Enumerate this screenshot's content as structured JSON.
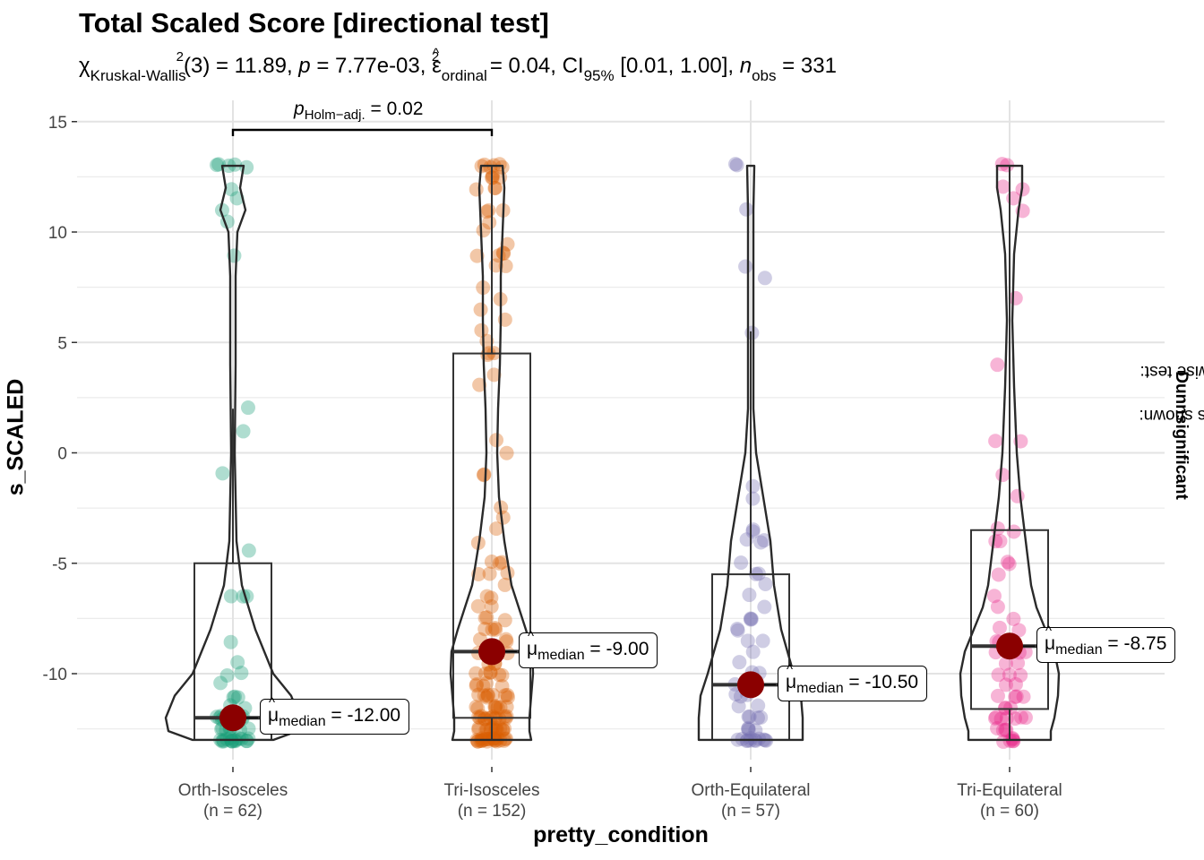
{
  "header": {
    "title": "Total Scaled Score [directional test]",
    "subtitle": {
      "chi": "χ",
      "chi_sub": "Kruskal-Wallis",
      "chi_sup": "2",
      "df_stat": "(3) = 11.89, ",
      "p_sym": "p",
      "p_val": " = 7.77e-03, ",
      "eps": "ε",
      "eps_sub": "ordinal",
      "eps_sup": "2",
      "eps_val": " = 0.04, CI",
      "ci_sub": "95%",
      "ci_val": " [0.01, 1.00], ",
      "n_sym": "n",
      "n_sub": "obs",
      "n_val": " = 331"
    }
  },
  "axis": {
    "ylabel": "s_SCALED",
    "xlabel": "pretty_condition"
  },
  "caption": {
    "prefix": "Pairwise test: ",
    "test": "Dunn",
    "middle": ", Bars shown: ",
    "shown": "significant"
  },
  "pairwise": {
    "p_sym": "p",
    "p_sub": "Holm−adj.",
    "p_val": " = 0.02"
  },
  "colors": {
    "Orth-Isosceles": "#1B9E77",
    "Tri-Isosceles": "#D95F02",
    "Orth-Equilateral": "#7570B3",
    "Tri-Equilateral": "#E7298A",
    "median_point": "#8B0000"
  },
  "chart_data": {
    "type": "violin-box-scatter",
    "ylim": [
      -13.6,
      15.3
    ],
    "yticks": [
      15,
      10,
      5,
      0,
      -5,
      -10
    ],
    "ytick_labels": [
      "15",
      "10",
      "5",
      "0",
      "-5",
      "-10"
    ],
    "grid": true,
    "categories": [
      "Orth-Isosceles",
      "Tri-Isosceles",
      "Orth-Equilateral",
      "Tri-Equilateral"
    ],
    "category_counts": [
      "(n = 62)",
      "(n = 152)",
      "(n = 57)",
      "(n = 60)"
    ],
    "groups": [
      {
        "name": "Orth-Isosceles",
        "box": {
          "q1": -13,
          "median": -12,
          "q3": -5,
          "whisker_low": -13,
          "whisker_high": 2
        },
        "violin_max": 13,
        "median_label_mu": "μ",
        "median_label_sub": "median",
        "median_label_val": " = -12.00",
        "points": [
          13,
          13,
          13,
          13,
          13,
          12,
          11.5,
          11,
          10.5,
          9,
          2,
          1,
          -1,
          -4.5,
          -6.5,
          -6.5,
          -6.5,
          -8.5,
          -9.5,
          -10,
          -10,
          -11,
          -11,
          -11.5,
          -12,
          -12,
          -12,
          -12,
          -12,
          -12.5,
          -12.5,
          -12.5,
          -12.5,
          -13,
          -13,
          -13,
          -13,
          -13,
          -13,
          -13,
          -13,
          -13,
          -13,
          -13,
          -13,
          -12,
          -12,
          -11,
          -12.5,
          -13,
          -12,
          -10.5,
          -12,
          -13,
          -12.5,
          -11.5,
          -13,
          -12,
          -13,
          -12.5,
          -13,
          -12
        ]
      },
      {
        "name": "Tri-Isosceles",
        "box": {
          "q1": -12,
          "median": -9,
          "q3": 4.5,
          "whisker_low": -13,
          "whisker_high": 13
        },
        "violin_max": 13,
        "median_label_mu": "μ",
        "median_label_sub": "median",
        "median_label_val": " = -9.00",
        "points": [
          13,
          13,
          13,
          13,
          13,
          13,
          12.5,
          12.5,
          12.5,
          12.5,
          12,
          12,
          12,
          11,
          11,
          11,
          10.5,
          10,
          9.5,
          9,
          9,
          9,
          9,
          8.5,
          8.5,
          7.5,
          7,
          6.5,
          6,
          5.5,
          5,
          4.5,
          4.5,
          4.5,
          3.5,
          3,
          0.5,
          0,
          -1,
          -1,
          -2.5,
          -3,
          -3.5,
          -4,
          -5,
          -5,
          -5,
          -5.5,
          -5.5,
          -5.5,
          -6,
          -6.5,
          -6.5,
          -7,
          -7,
          -7.5,
          -7.5,
          -7.5,
          -8,
          -8,
          -8,
          -8,
          -8.5,
          -8.5,
          -8.5,
          -9,
          -9,
          -9,
          -9,
          -9.5,
          -9.5,
          -10,
          -10,
          -10,
          -10,
          -10.5,
          -10.5,
          -10.5,
          -11,
          -11,
          -11,
          -11,
          -11,
          -11.5,
          -11.5,
          -11.5,
          -11.5,
          -12,
          -12,
          -12,
          -12,
          -12,
          -12,
          -12.5,
          -12.5,
          -12.5,
          -12.5,
          -12.5,
          -12.5,
          -13,
          -13,
          -13,
          -13,
          -13,
          -13,
          -13,
          -13,
          -13,
          -13,
          -13,
          -13,
          -13,
          -13,
          -12.5,
          -12,
          -11.5,
          -11,
          -10.5,
          -10,
          -12,
          -12.5,
          -13,
          -11,
          -9.5,
          -12,
          -13,
          -12.5,
          -11.5,
          -10,
          -13,
          -12,
          -11,
          -12.5,
          -13,
          -12,
          -11.5,
          -10.5,
          -13,
          -12.5,
          -12,
          -11,
          -13,
          -12.5,
          -12,
          -11.5,
          -13,
          -12,
          -12.5,
          -13,
          -12.5,
          -13
        ]
      },
      {
        "name": "Orth-Equilateral",
        "box": {
          "q1": -13,
          "median": -10.5,
          "q3": -5.5,
          "whisker_low": -13,
          "whisker_high": 5.5
        },
        "violin_max": 13,
        "median_label_mu": "μ",
        "median_label_sub": "median",
        "median_label_val": " = -10.50",
        "points": [
          13,
          13,
          11,
          8.5,
          8,
          5.5,
          -1.5,
          -2,
          -3.5,
          -3.5,
          -4,
          -4,
          -4,
          -5,
          -5.5,
          -5.5,
          -6,
          -6.5,
          -7,
          -7.5,
          -7.5,
          -7.5,
          -8,
          -8,
          -8.5,
          -8.5,
          -9,
          -9.5,
          -10,
          -10,
          -10.5,
          -10.5,
          -11,
          -11,
          -11,
          -11.5,
          -12,
          -12,
          -12,
          -12.5,
          -12.5,
          -12.5,
          -13,
          -13,
          -13,
          -13,
          -13,
          -13,
          -13,
          -13,
          -13,
          -13,
          -12,
          -11.5,
          -13,
          -12.5,
          -13
        ]
      },
      {
        "name": "Tri-Equilateral",
        "box": {
          "q1": -11.6,
          "median": -8.75,
          "q3": -3.5,
          "whisker_low": -13,
          "whisker_high": 13
        },
        "violin_max": 13,
        "median_label_mu": "μ",
        "median_label_sub": "median",
        "median_label_val": " = -8.75",
        "points": [
          13,
          13,
          12,
          12,
          11.5,
          11,
          7,
          4,
          0.5,
          0.5,
          -1,
          -2,
          -3.5,
          -3.5,
          -4,
          -4,
          -5,
          -5,
          -5.5,
          -6.5,
          -7,
          -7.5,
          -8,
          -8,
          -8.5,
          -8.5,
          -9,
          -9,
          -9,
          -9.5,
          -9.5,
          -10,
          -10,
          -10,
          -10.5,
          -10.5,
          -11,
          -11,
          -11,
          -11.5,
          -11.5,
          -12,
          -12,
          -12,
          -12,
          -12,
          -12.5,
          -12.5,
          -12.5,
          -13,
          -13,
          -13,
          -13,
          -13,
          -12,
          -11,
          -12.5,
          -13,
          -11.5,
          -12
        ]
      }
    ]
  }
}
